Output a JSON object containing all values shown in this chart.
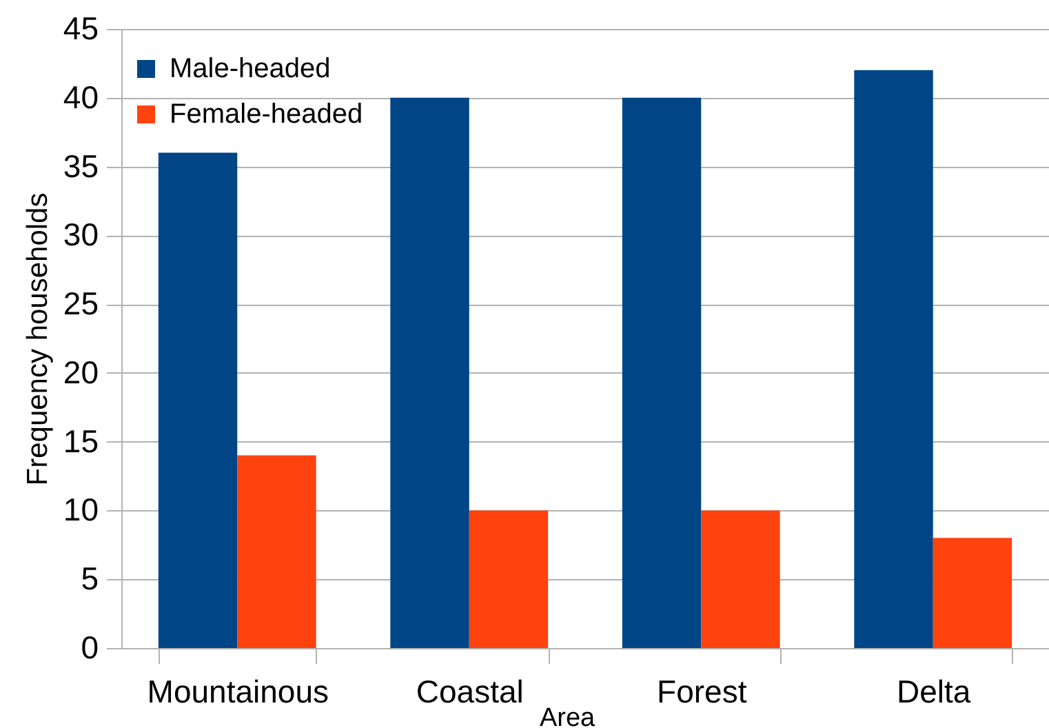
{
  "chart_data": {
    "type": "bar",
    "categories": [
      "Mountainous",
      "Coastal",
      "Forest",
      "Delta"
    ],
    "series": [
      {
        "name": "Male-headed",
        "color": "#004586",
        "values": [
          36,
          40,
          40,
          42
        ]
      },
      {
        "name": "Female-headed",
        "color": "#ff420e",
        "values": [
          14,
          10,
          10,
          8
        ]
      }
    ],
    "xlabel": "Area",
    "ylabel": "Frequency households",
    "ylim": [
      0,
      45
    ],
    "yticks": [
      0,
      5,
      10,
      15,
      20,
      25,
      30,
      35,
      40,
      45
    ],
    "grid": "y",
    "legend": "top left"
  }
}
